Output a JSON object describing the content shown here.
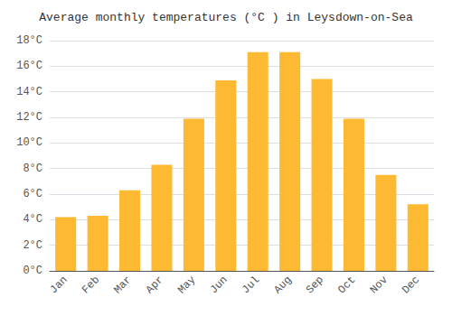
{
  "chart_data": {
    "type": "bar",
    "title": "Average monthly temperatures (°C ) in Leysdown-on-Sea",
    "categories": [
      "Jan",
      "Feb",
      "Mar",
      "Apr",
      "May",
      "Jun",
      "Jul",
      "Aug",
      "Sep",
      "Oct",
      "Nov",
      "Dec"
    ],
    "values": [
      4.2,
      4.3,
      6.3,
      8.3,
      11.9,
      14.9,
      17.1,
      17.1,
      15.0,
      11.9,
      7.5,
      5.2
    ],
    "color": "#FDB931",
    "ylim": [
      0,
      18
    ],
    "yticks": [
      {
        "value": 0,
        "label": "0°C"
      },
      {
        "value": 2,
        "label": "2°C"
      },
      {
        "value": 4,
        "label": "4°C"
      },
      {
        "value": 6,
        "label": "6°C"
      },
      {
        "value": 8,
        "label": "8°C"
      },
      {
        "value": 10,
        "label": "10°C"
      },
      {
        "value": 12,
        "label": "12°C"
      },
      {
        "value": 14,
        "label": "14°C"
      },
      {
        "value": 16,
        "label": "16°C"
      },
      {
        "value": 18,
        "label": "18°C"
      }
    ],
    "grid": true
  }
}
